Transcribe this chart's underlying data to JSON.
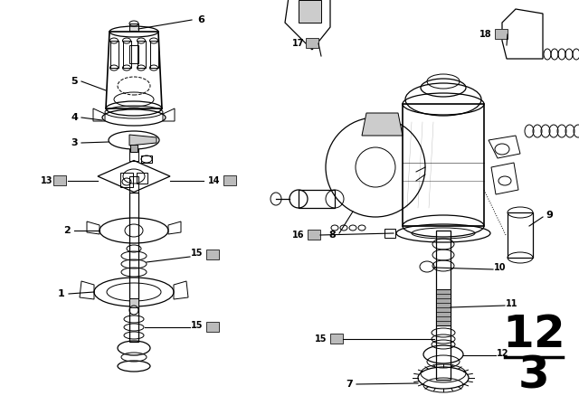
{
  "background_color": "#ffffff",
  "fig_width": 6.4,
  "fig_height": 4.48,
  "dpi": 100,
  "fraction_label": "12",
  "fraction_denom": "3",
  "line_color": "#000000",
  "text_color": "#000000"
}
